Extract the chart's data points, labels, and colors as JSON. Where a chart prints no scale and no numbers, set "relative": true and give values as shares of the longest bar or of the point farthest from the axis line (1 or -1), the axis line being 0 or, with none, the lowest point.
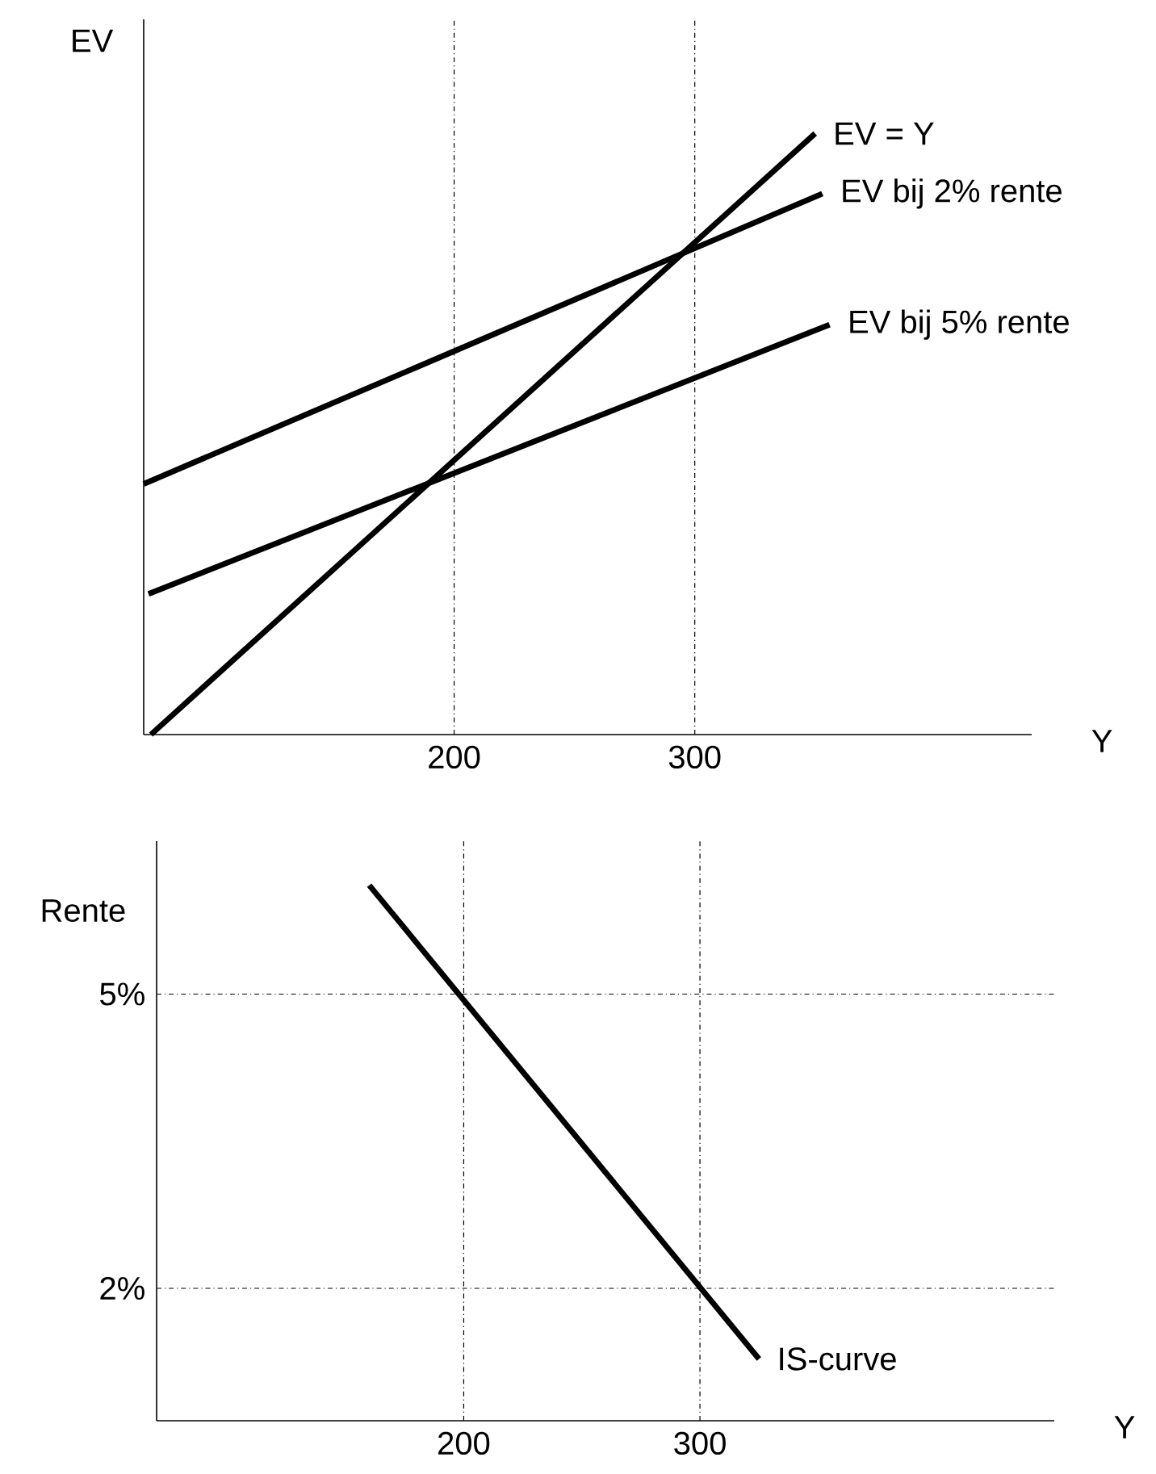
{
  "chart_data": [
    {
      "type": "line",
      "xlabel": "Y",
      "ylabel": "EV",
      "relative": true,
      "xlim": [
        71,
        440
      ],
      "xticks": [
        200,
        300
      ],
      "tick_labels": "x",
      "ref_lines": [
        {
          "axis": "x",
          "value": 200,
          "color": "#000000",
          "line_style": "dashdot"
        },
        {
          "axis": "x",
          "value": 300,
          "color": "#000000",
          "line_style": "dashdot"
        }
      ],
      "series": [
        {
          "name": "EV = Y",
          "color": "#000000",
          "x": [
            74,
            350
          ],
          "values": [
            0,
            1
          ]
        },
        {
          "name": "EV bij 2% rente",
          "color": "#000000",
          "x": [
            71,
            353
          ],
          "values": [
            0.417,
            0.9
          ]
        },
        {
          "name": "EV bij 5% rente",
          "color": "#000000",
          "x": [
            73,
            356
          ],
          "values": [
            0.234,
            0.682
          ]
        }
      ]
    },
    {
      "type": "line",
      "xlabel": "Y",
      "ylabel": "Rente",
      "xlim": [
        70,
        450
      ],
      "ylim": [
        0.65,
        6.56
      ],
      "xticks": [
        200,
        300
      ],
      "yticks": [
        {
          "value": 2,
          "label": "2%"
        },
        {
          "value": 5,
          "label": "5%"
        }
      ],
      "ref_lines": [
        {
          "axis": "x",
          "value": 200,
          "color": "#000000",
          "line_style": "dashdot"
        },
        {
          "axis": "x",
          "value": 300,
          "color": "#000000",
          "line_style": "dashdot"
        },
        {
          "axis": "y",
          "value": 5,
          "color": "#000000",
          "line_style": "dashdot"
        },
        {
          "axis": "y",
          "value": 2,
          "color": "#000000",
          "line_style": "dashdot"
        }
      ],
      "series": [
        {
          "name": "IS-curve",
          "color": "#000000",
          "x": [
            160,
            325
          ],
          "values": [
            6.11,
            1.28
          ]
        }
      ]
    }
  ]
}
